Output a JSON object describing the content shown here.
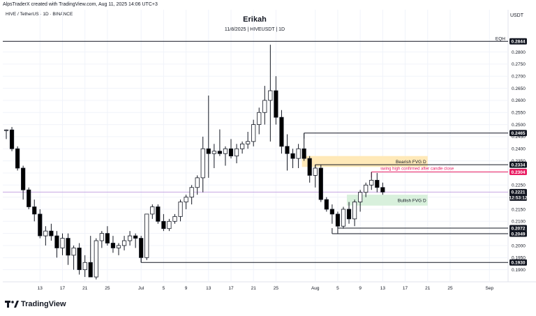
{
  "header": {
    "caption": "AlpsTraderX created with TradingView.com, Aug 11, 2025 14:06 UTC+3",
    "symbol_line": "HIVE / TetherUS · 1D · BINANCE",
    "currency": "USDT",
    "title": "Erikah",
    "subtitle": "11/8/2025 | HIVEUSDT | 1D"
  },
  "footer": {
    "brand": "TradingView",
    "logo_icon": "tradingview-logo-icon"
  },
  "colors": {
    "bull": "#ffffff",
    "bear": "#000000",
    "wick": "#131722",
    "grid": "#f0f3fa",
    "annotation": "#e91e63",
    "bearish_zone": "#ffe9b8",
    "bullish_zone": "#d8f0dc",
    "current_price_line": "#c7a6e3"
  },
  "chart_data": {
    "type": "candlestick",
    "interval": "1D",
    "ylim": [
      0.185,
      0.2865
    ],
    "y_ticks": [
      "0.2800",
      "0.2750",
      "0.2700",
      "0.2650",
      "0.2600",
      "0.2550",
      "0.2500",
      "0.2450",
      "0.2400",
      "0.2350",
      "0.2300",
      "0.2250",
      "0.2200",
      "0.2150",
      "0.2100",
      "0.2050",
      "0.2000",
      "0.1950",
      "0.1900"
    ],
    "x_ticks": [
      "13",
      "17",
      "21",
      "25",
      "Jul",
      "5",
      "9",
      "13",
      "17",
      "21",
      "25",
      "Aug",
      "5",
      "9",
      "13",
      "17",
      "21",
      "25",
      "Sep",
      "5"
    ],
    "x_tick_days": [
      -19,
      -15,
      -11,
      -7,
      -1,
      3,
      7,
      11,
      15,
      19,
      23,
      30,
      34,
      38,
      42,
      46,
      50,
      54,
      61,
      65
    ],
    "candles": [
      {
        "d": -25,
        "o": 0.2475,
        "h": 0.248,
        "l": 0.244,
        "c": 0.2478
      },
      {
        "d": -24,
        "o": 0.2478,
        "h": 0.249,
        "l": 0.239,
        "c": 0.24
      },
      {
        "d": -23,
        "o": 0.24,
        "h": 0.241,
        "l": 0.231,
        "c": 0.232
      },
      {
        "d": -22,
        "o": 0.232,
        "h": 0.233,
        "l": 0.219,
        "c": 0.223
      },
      {
        "d": -21,
        "o": 0.223,
        "h": 0.224,
        "l": 0.215,
        "c": 0.216
      },
      {
        "d": -20,
        "o": 0.216,
        "h": 0.219,
        "l": 0.21,
        "c": 0.213
      },
      {
        "d": -19,
        "o": 0.213,
        "h": 0.215,
        "l": 0.203,
        "c": 0.204
      },
      {
        "d": -18,
        "o": 0.204,
        "h": 0.208,
        "l": 0.2,
        "c": 0.206
      },
      {
        "d": -17,
        "o": 0.206,
        "h": 0.209,
        "l": 0.202,
        "c": 0.204
      },
      {
        "d": -16,
        "o": 0.204,
        "h": 0.206,
        "l": 0.195,
        "c": 0.199
      },
      {
        "d": -15,
        "o": 0.199,
        "h": 0.205,
        "l": 0.196,
        "c": 0.203
      },
      {
        "d": -14,
        "o": 0.203,
        "h": 0.205,
        "l": 0.192,
        "c": 0.196
      },
      {
        "d": -13,
        "o": 0.196,
        "h": 0.2,
        "l": 0.19,
        "c": 0.199
      },
      {
        "d": -12,
        "o": 0.199,
        "h": 0.201,
        "l": 0.188,
        "c": 0.19
      },
      {
        "d": -11,
        "o": 0.19,
        "h": 0.196,
        "l": 0.187,
        "c": 0.193
      },
      {
        "d": -10,
        "o": 0.193,
        "h": 0.204,
        "l": 0.187,
        "c": 0.187
      },
      {
        "d": -9,
        "o": 0.187,
        "h": 0.203,
        "l": 0.186,
        "c": 0.202
      },
      {
        "d": -8,
        "o": 0.202,
        "h": 0.206,
        "l": 0.199,
        "c": 0.205
      },
      {
        "d": -7,
        "o": 0.205,
        "h": 0.208,
        "l": 0.2,
        "c": 0.201
      },
      {
        "d": -6,
        "o": 0.201,
        "h": 0.204,
        "l": 0.197,
        "c": 0.199
      },
      {
        "d": -5,
        "o": 0.199,
        "h": 0.201,
        "l": 0.196,
        "c": 0.2
      },
      {
        "d": -4,
        "o": 0.2,
        "h": 0.204,
        "l": 0.198,
        "c": 0.202
      },
      {
        "d": -3,
        "o": 0.202,
        "h": 0.206,
        "l": 0.2,
        "c": 0.204
      },
      {
        "d": -2,
        "o": 0.204,
        "h": 0.205,
        "l": 0.199,
        "c": 0.203
      },
      {
        "d": -1,
        "o": 0.203,
        "h": 0.204,
        "l": 0.193,
        "c": 0.195
      },
      {
        "d": 0,
        "o": 0.195,
        "h": 0.213,
        "l": 0.194,
        "c": 0.213
      },
      {
        "d": 1,
        "o": 0.213,
        "h": 0.217,
        "l": 0.211,
        "c": 0.216
      },
      {
        "d": 2,
        "o": 0.216,
        "h": 0.217,
        "l": 0.209,
        "c": 0.21
      },
      {
        "d": 3,
        "o": 0.21,
        "h": 0.213,
        "l": 0.206,
        "c": 0.207
      },
      {
        "d": 4,
        "o": 0.207,
        "h": 0.211,
        "l": 0.206,
        "c": 0.21
      },
      {
        "d": 5,
        "o": 0.21,
        "h": 0.213,
        "l": 0.209,
        "c": 0.212
      },
      {
        "d": 6,
        "o": 0.212,
        "h": 0.219,
        "l": 0.21,
        "c": 0.218
      },
      {
        "d": 7,
        "o": 0.218,
        "h": 0.221,
        "l": 0.215,
        "c": 0.22
      },
      {
        "d": 8,
        "o": 0.22,
        "h": 0.225,
        "l": 0.217,
        "c": 0.224
      },
      {
        "d": 9,
        "o": 0.224,
        "h": 0.229,
        "l": 0.221,
        "c": 0.228
      },
      {
        "d": 10,
        "o": 0.228,
        "h": 0.245,
        "l": 0.222,
        "c": 0.24
      },
      {
        "d": 11,
        "o": 0.24,
        "h": 0.262,
        "l": 0.228,
        "c": 0.238
      },
      {
        "d": 12,
        "o": 0.238,
        "h": 0.242,
        "l": 0.232,
        "c": 0.239
      },
      {
        "d": 13,
        "o": 0.239,
        "h": 0.248,
        "l": 0.237,
        "c": 0.238
      },
      {
        "d": 14,
        "o": 0.238,
        "h": 0.241,
        "l": 0.233,
        "c": 0.24
      },
      {
        "d": 15,
        "o": 0.24,
        "h": 0.244,
        "l": 0.236,
        "c": 0.237
      },
      {
        "d": 16,
        "o": 0.237,
        "h": 0.242,
        "l": 0.234,
        "c": 0.24
      },
      {
        "d": 17,
        "o": 0.24,
        "h": 0.243,
        "l": 0.238,
        "c": 0.242
      },
      {
        "d": 18,
        "o": 0.242,
        "h": 0.247,
        "l": 0.24,
        "c": 0.243
      },
      {
        "d": 19,
        "o": 0.243,
        "h": 0.252,
        "l": 0.241,
        "c": 0.25
      },
      {
        "d": 20,
        "o": 0.25,
        "h": 0.257,
        "l": 0.246,
        "c": 0.255
      },
      {
        "d": 21,
        "o": 0.255,
        "h": 0.266,
        "l": 0.25,
        "c": 0.26
      },
      {
        "d": 22,
        "o": 0.26,
        "h": 0.283,
        "l": 0.243,
        "c": 0.264
      },
      {
        "d": 23,
        "o": 0.264,
        "h": 0.27,
        "l": 0.25,
        "c": 0.253
      },
      {
        "d": 24,
        "o": 0.253,
        "h": 0.256,
        "l": 0.238,
        "c": 0.241
      },
      {
        "d": 25,
        "o": 0.241,
        "h": 0.246,
        "l": 0.231,
        "c": 0.238
      },
      {
        "d": 26,
        "o": 0.238,
        "h": 0.24,
        "l": 0.232,
        "c": 0.236
      },
      {
        "d": 27,
        "o": 0.236,
        "h": 0.242,
        "l": 0.232,
        "c": 0.24
      },
      {
        "d": 28,
        "o": 0.24,
        "h": 0.2465,
        "l": 0.235,
        "c": 0.236
      },
      {
        "d": 29,
        "o": 0.236,
        "h": 0.237,
        "l": 0.226,
        "c": 0.229
      },
      {
        "d": 30,
        "o": 0.229,
        "h": 0.2334,
        "l": 0.224,
        "c": 0.232
      },
      {
        "d": 31,
        "o": 0.232,
        "h": 0.2334,
        "l": 0.218,
        "c": 0.219
      },
      {
        "d": 32,
        "o": 0.219,
        "h": 0.22,
        "l": 0.214,
        "c": 0.215
      },
      {
        "d": 33,
        "o": 0.215,
        "h": 0.217,
        "l": 0.209,
        "c": 0.213
      },
      {
        "d": 34,
        "o": 0.213,
        "h": 0.214,
        "l": 0.205,
        "c": 0.208
      },
      {
        "d": 35,
        "o": 0.208,
        "h": 0.216,
        "l": 0.207,
        "c": 0.215
      },
      {
        "d": 36,
        "o": 0.215,
        "h": 0.218,
        "l": 0.209,
        "c": 0.211
      },
      {
        "d": 37,
        "o": 0.211,
        "h": 0.219,
        "l": 0.208,
        "c": 0.218
      },
      {
        "d": 38,
        "o": 0.218,
        "h": 0.223,
        "l": 0.214,
        "c": 0.222
      },
      {
        "d": 39,
        "o": 0.222,
        "h": 0.226,
        "l": 0.22,
        "c": 0.225
      },
      {
        "d": 40,
        "o": 0.225,
        "h": 0.2304,
        "l": 0.223,
        "c": 0.227
      },
      {
        "d": 41,
        "o": 0.227,
        "h": 0.23,
        "l": 0.222,
        "c": 0.224
      },
      {
        "d": 42,
        "o": 0.224,
        "h": 0.226,
        "l": 0.221,
        "c": 0.2221
      }
    ],
    "levels": [
      {
        "name": "eqh",
        "label": "EQH",
        "value": 0.2844,
        "value_label": "0.2844",
        "color": "#131722"
      },
      {
        "name": "high-2465",
        "value": 0.2465,
        "value_label": "0.2465",
        "color": "#131722"
      },
      {
        "name": "high-2334",
        "value": 0.2334,
        "value_label": "0.2334",
        "color": "#131722"
      },
      {
        "name": "swing-high",
        "value": 0.2304,
        "value_label": "0.2304",
        "color": "#e91e63"
      },
      {
        "name": "low-2072",
        "value": 0.2072,
        "value_label": "0.2072",
        "color": "#131722"
      },
      {
        "name": "low-2049",
        "value": 0.2049,
        "value_label": "0.2049",
        "color": "#131722"
      },
      {
        "name": "low-1930",
        "value": 0.193,
        "value_label": "0.1930",
        "color": "#131722"
      }
    ],
    "zones": [
      {
        "name": "bearish-fvg",
        "label": "Bearish FVG D",
        "from_day": 28,
        "to_day": 50,
        "low": 0.2325,
        "high": 0.237
      },
      {
        "name": "bullish-fvg",
        "label": "Bullish FVG D",
        "from_day": 36,
        "to_day": 50,
        "low": 0.2165,
        "high": 0.221
      }
    ],
    "annotation": {
      "text": "swing high confirmed after candle close"
    },
    "last_price": {
      "value": "0.2221",
      "countdown": "12:53:12",
      "color": "#131722"
    }
  }
}
